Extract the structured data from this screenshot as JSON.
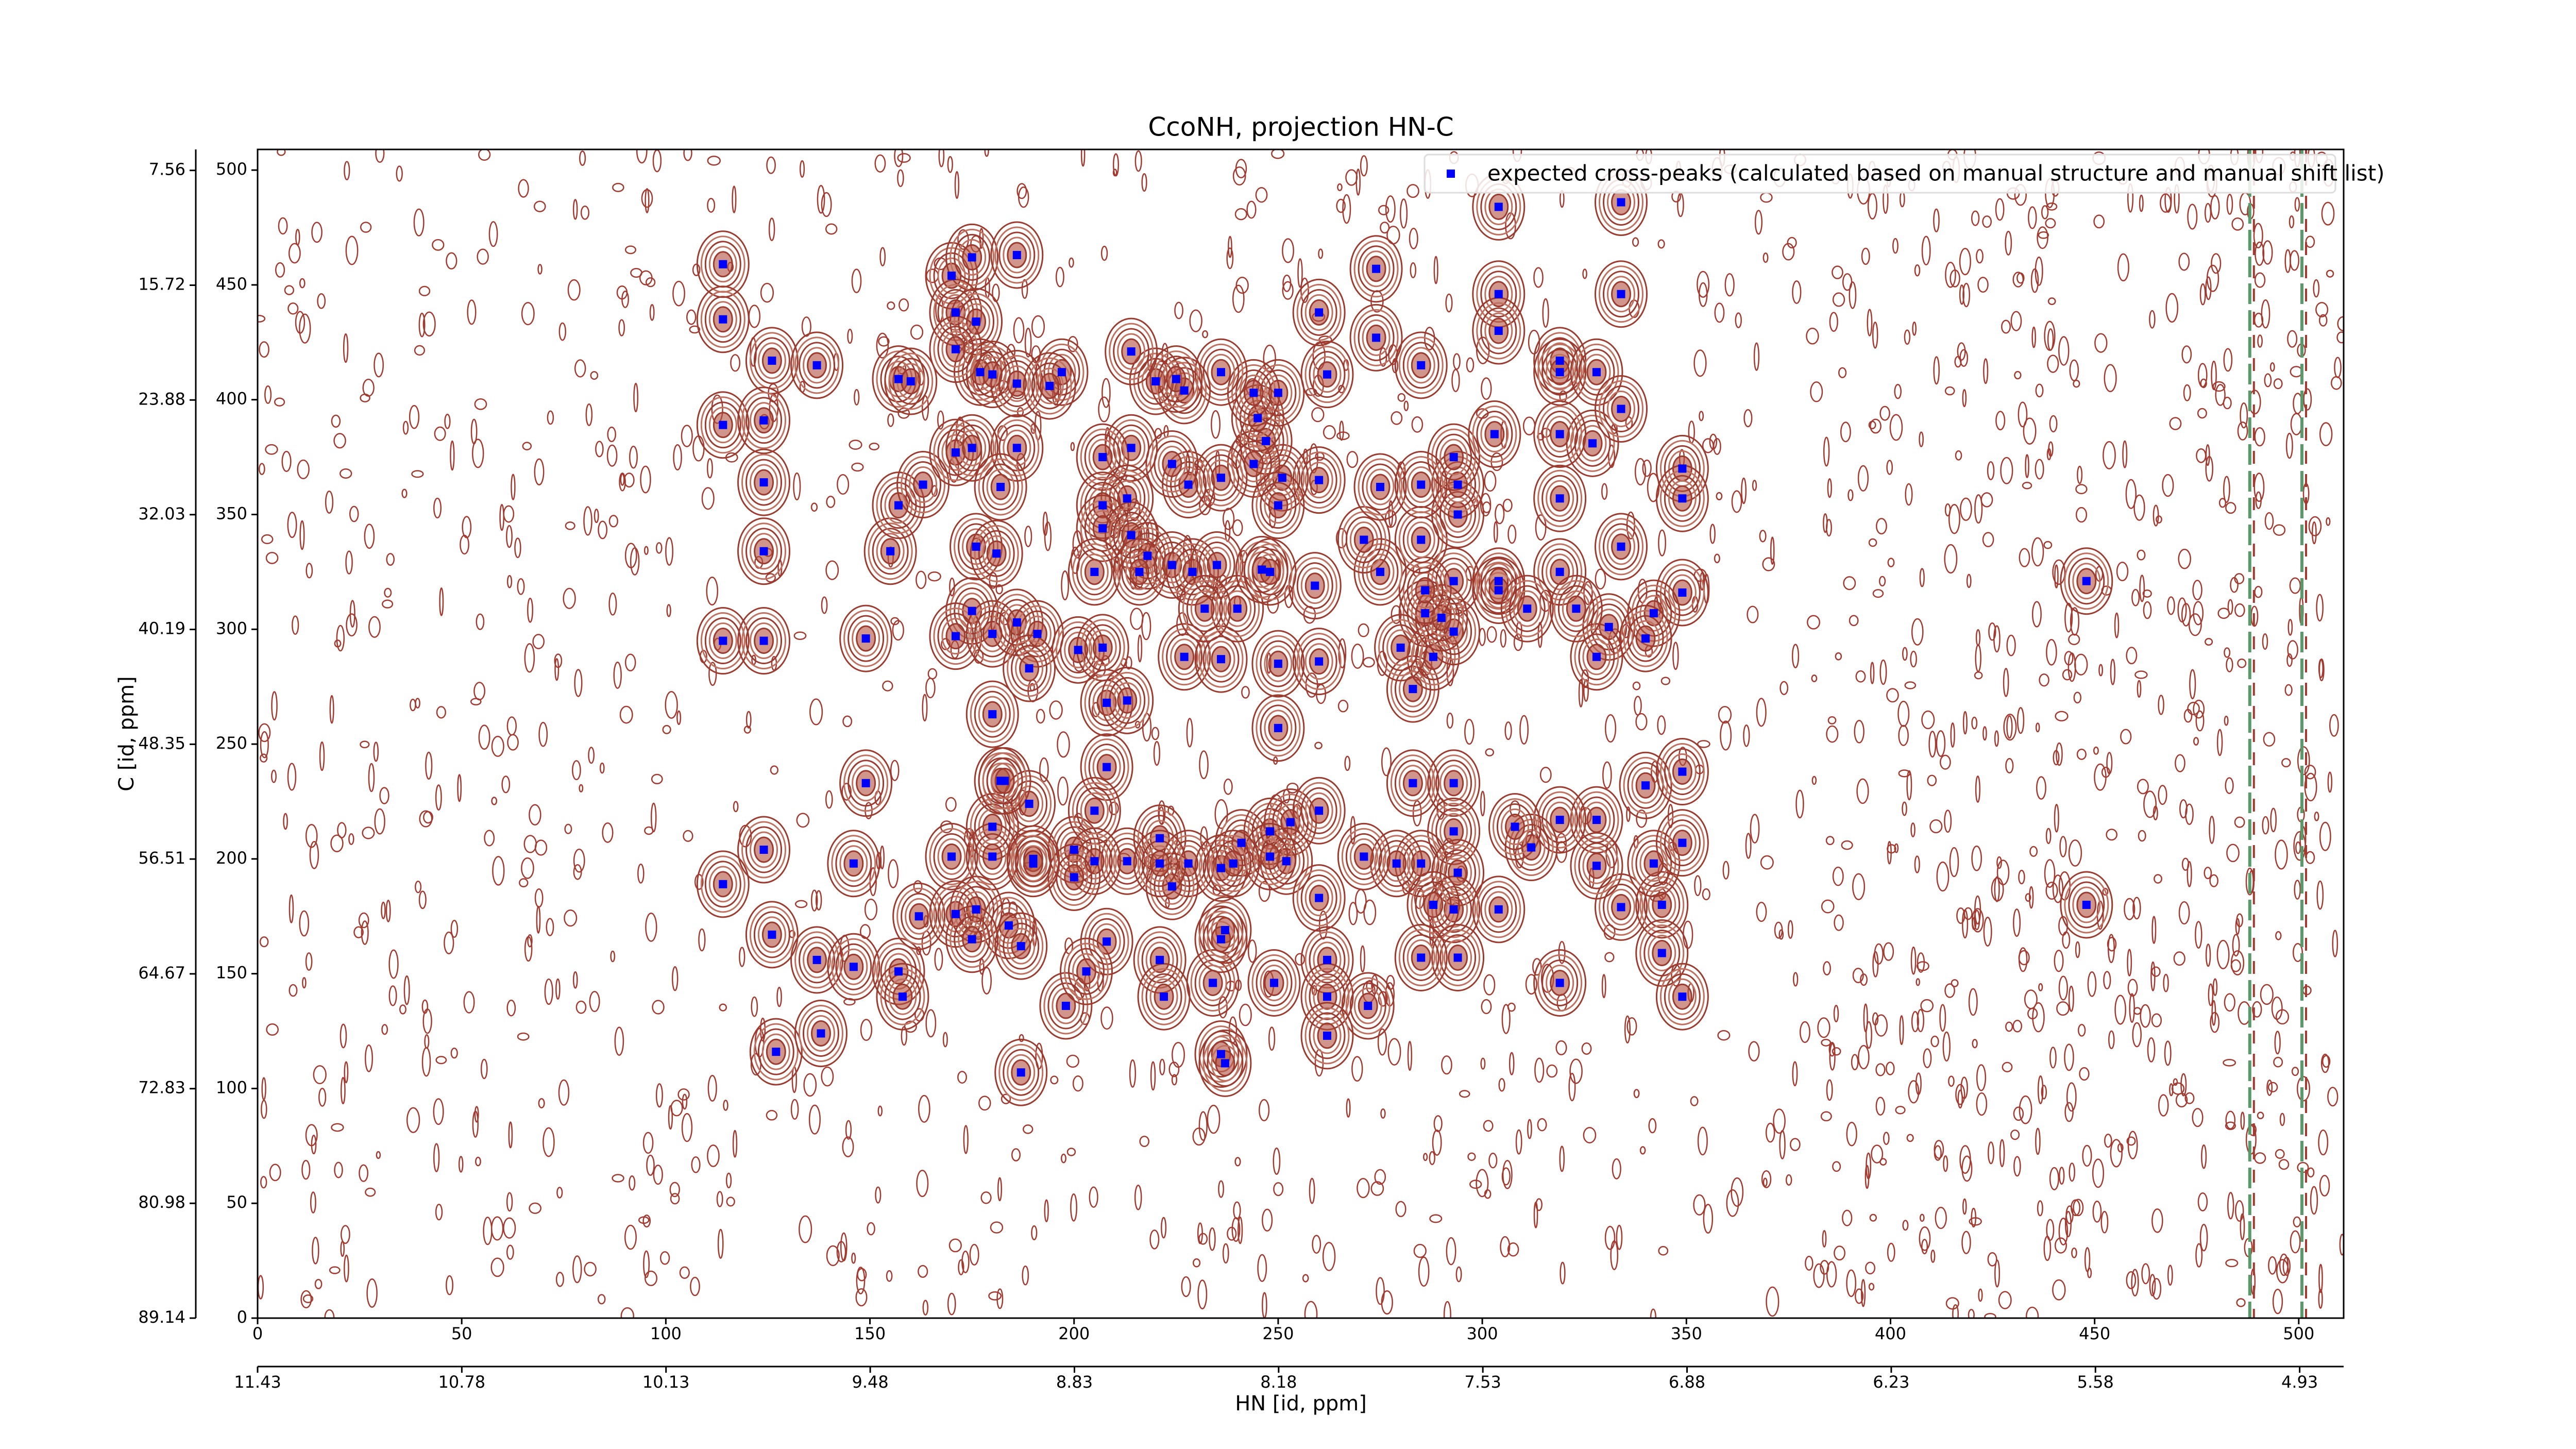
{
  "chart_data": {
    "type": "scatter",
    "title": "CcoNH, projection HN-C",
    "xlabel": "HN [id, ppm]",
    "ylabel": "C [id, ppm]",
    "xlim": [
      0,
      511
    ],
    "xticks": [
      0,
      50,
      100,
      150,
      200,
      250,
      300,
      350,
      400,
      450,
      500
    ],
    "ylim": [
      0,
      509
    ],
    "yticks": [
      0,
      50,
      100,
      150,
      200,
      250,
      300,
      350,
      400,
      450,
      500
    ],
    "x2lim": [
      11.43,
      4.79
    ],
    "x2ticks": [
      11.43,
      10.78,
      10.13,
      9.48,
      8.83,
      8.18,
      7.53,
      6.88,
      6.23,
      5.58,
      4.93
    ],
    "y2lim": [
      89.14,
      6.07
    ],
    "y2ticks": [
      89.14,
      80.98,
      72.83,
      64.67,
      56.51,
      48.35,
      40.19,
      32.03,
      23.88,
      15.72,
      7.56
    ],
    "legend": "upper right",
    "series": [
      {
        "name": "expected cross-peaks (calculated based on manual structure and manual shift list)",
        "color": "#0000ff",
        "x": [
          114,
          114,
          126,
          137,
          114,
          124,
          124,
          124,
          114,
          124,
          149,
          124,
          114,
          126,
          137,
          146,
          157,
          158,
          155,
          157,
          163,
          157,
          160,
          170,
          175,
          186,
          171,
          176,
          177,
          180,
          186,
          171,
          197,
          194,
          186,
          171,
          175,
          182,
          176,
          181,
          175,
          171,
          180,
          186,
          191,
          189,
          180,
          201,
          207,
          227,
          236,
          250,
          260,
          283,
          288,
          293,
          286,
          280,
          293,
          290,
          304,
          304,
          286,
          275,
          259,
          271,
          285,
          294,
          294,
          293,
          275,
          285,
          260,
          251,
          247,
          244,
          236,
          228,
          224,
          214,
          207,
          213,
          207,
          207,
          214,
          218,
          205,
          216,
          224,
          229,
          235,
          240,
          232,
          246,
          248,
          250,
          245,
          250,
          244,
          236,
          227,
          220,
          214,
          225,
          262,
          274,
          285,
          303,
          304,
          304,
          319,
          319,
          328,
          334,
          334,
          304,
          274,
          260,
          327,
          334,
          319,
          349,
          349,
          334,
          319,
          319,
          349,
          331,
          328,
          342,
          340,
          311,
          323,
          448,
          208,
          208,
          213,
          250,
          149,
          182,
          189,
          180,
          190,
          180,
          200,
          205,
          213,
          221,
          228,
          236,
          241,
          248,
          253,
          260,
          252,
          260,
          248,
          239,
          224,
          221,
          205,
          200,
          190,
          170,
          146,
          162,
          171,
          176,
          184,
          187,
          175,
          208,
          198,
          203,
          221,
          222,
          234,
          249,
          262,
          262,
          272,
          237,
          236,
          293,
          293,
          285,
          279,
          271,
          294,
          293,
          288,
          304,
          294,
          285,
          319,
          334,
          344,
          344,
          349,
          328,
          328,
          340,
          349,
          342,
          349,
          319,
          312,
          283,
          308,
          448,
          127,
          138,
          187,
          236,
          237,
          262,
          183
        ],
        "values": [
          459,
          435,
          417,
          415,
          389,
          391,
          364,
          334,
          295,
          295,
          296,
          204,
          189,
          167,
          156,
          153,
          151,
          140,
          334,
          354,
          363,
          409,
          408,
          454,
          462,
          463,
          438,
          434,
          412,
          411,
          407,
          422,
          412,
          406,
          379,
          377,
          379,
          362,
          336,
          333,
          308,
          297,
          298,
          303,
          298,
          283,
          263,
          291,
          292,
          288,
          287,
          285,
          286,
          274,
          288,
          299,
          307,
          292,
          321,
          305,
          321,
          317,
          317,
          325,
          319,
          339,
          339,
          350,
          363,
          375,
          362,
          363,
          365,
          366,
          382,
          372,
          366,
          363,
          372,
          379,
          375,
          357,
          354,
          344,
          341,
          332,
          325,
          325,
          328,
          325,
          328,
          309,
          309,
          326,
          325,
          354,
          392,
          403,
          403,
          412,
          404,
          408,
          421,
          409,
          411,
          427,
          415,
          385,
          446,
          430,
          417,
          412,
          412,
          446,
          486,
          484,
          457,
          438,
          381,
          396,
          385,
          370,
          357,
          336,
          357,
          325,
          316,
          301,
          288,
          307,
          296,
          309,
          309,
          321,
          240,
          268,
          269,
          257,
          233,
          234,
          224,
          214,
          200,
          201,
          204,
          221,
          199,
          209,
          198,
          196,
          207,
          212,
          216,
          221,
          199,
          183,
          201,
          198,
          188,
          198,
          199,
          192,
          198,
          201,
          198,
          175,
          176,
          178,
          171,
          162,
          165,
          164,
          136,
          151,
          156,
          140,
          146,
          146,
          156,
          140,
          136,
          169,
          165,
          233,
          212,
          198,
          198,
          201,
          194,
          178,
          180,
          178,
          157,
          157,
          146,
          179,
          180,
          159,
          140,
          217,
          197,
          232,
          238,
          198,
          207,
          217,
          205,
          233,
          214,
          180,
          116,
          124,
          107,
          115,
          111,
          123,
          234
        ]
      }
    ]
  }
}
